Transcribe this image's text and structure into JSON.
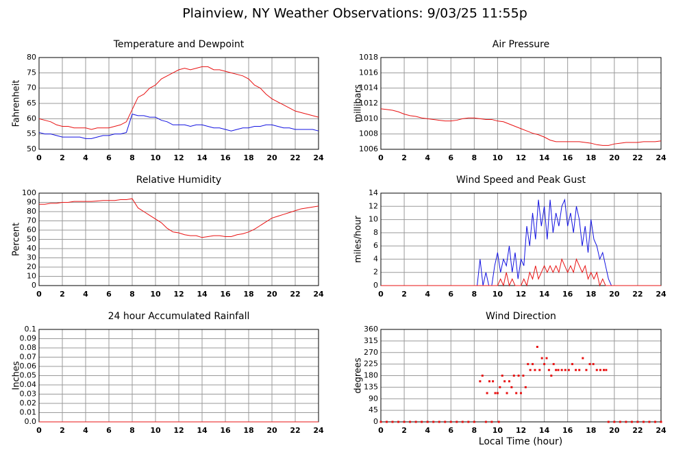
{
  "title": "Plainview, NY Weather Observations: 9/03/25 11:55p",
  "xlabel": "Local Time (hour)",
  "chart_data": [
    {
      "type": "line",
      "title": "Temperature and Dewpoint",
      "ylabel": "Fahrenheit",
      "x": [
        0,
        0.5,
        1,
        1.5,
        2,
        2.5,
        3,
        3.5,
        4,
        4.5,
        5,
        5.5,
        6,
        6.5,
        7,
        7.5,
        8,
        8.5,
        9,
        9.5,
        10,
        10.5,
        11,
        11.5,
        12,
        12.5,
        13,
        13.5,
        14,
        14.5,
        15,
        15.5,
        16,
        16.5,
        17,
        17.5,
        18,
        18.5,
        19,
        19.5,
        20,
        20.5,
        21,
        21.5,
        22,
        22.5,
        23,
        23.5,
        24
      ],
      "xlim": [
        0,
        24
      ],
      "xticks": [
        0,
        2,
        4,
        6,
        8,
        10,
        12,
        14,
        16,
        18,
        20,
        22,
        24
      ],
      "ylim": [
        50,
        80
      ],
      "yticks": [
        50,
        55,
        60,
        65,
        70,
        75,
        80
      ],
      "grid": true,
      "series": [
        {
          "color": "#e81010",
          "values": [
            60,
            59.5,
            59,
            58,
            57.5,
            57.5,
            57,
            57,
            57,
            56.5,
            57,
            57,
            57,
            57.5,
            58,
            59,
            63,
            67,
            68,
            70,
            71,
            73,
            74,
            75,
            76,
            76.5,
            76,
            76.5,
            77,
            77,
            76,
            76,
            75.5,
            75,
            74.5,
            74,
            73,
            71,
            70,
            68,
            66.5,
            65.5,
            64.5,
            63.5,
            62.5,
            62,
            61.5,
            61,
            60.5
          ]
        },
        {
          "color": "#1010e0",
          "values": [
            55.5,
            55,
            55,
            54.5,
            54,
            54,
            54,
            54,
            53.5,
            53.5,
            54,
            54.5,
            54.5,
            55,
            55,
            55.5,
            61.5,
            61,
            61,
            60.5,
            60.5,
            59.5,
            59,
            58,
            58,
            58,
            57.5,
            58,
            58,
            57.5,
            57,
            57,
            56.5,
            56,
            56.5,
            57,
            57,
            57.5,
            57.5,
            58,
            58,
            57.5,
            57,
            57,
            56.5,
            56.5,
            56.5,
            56.5,
            56
          ]
        }
      ]
    },
    {
      "type": "line",
      "title": "Air Pressure",
      "ylabel": "millibars",
      "x": [
        0,
        0.5,
        1,
        1.5,
        2,
        2.5,
        3,
        3.5,
        4,
        4.5,
        5,
        5.5,
        6,
        6.5,
        7,
        7.5,
        8,
        8.5,
        9,
        9.5,
        10,
        10.5,
        11,
        11.5,
        12,
        12.5,
        13,
        13.5,
        14,
        14.5,
        15,
        15.5,
        16,
        16.5,
        17,
        17.5,
        18,
        18.5,
        19,
        19.5,
        20,
        20.5,
        21,
        21.5,
        22,
        22.5,
        23,
        23.5,
        24
      ],
      "xlim": [
        0,
        24
      ],
      "xticks": [
        0,
        2,
        4,
        6,
        8,
        10,
        12,
        14,
        16,
        18,
        20,
        22,
        24
      ],
      "ylim": [
        1006,
        1018
      ],
      "yticks": [
        1006,
        1008,
        1010,
        1012,
        1014,
        1016,
        1018
      ],
      "grid": true,
      "series": [
        {
          "color": "#e81010",
          "values": [
            1011.3,
            1011.2,
            1011.1,
            1010.9,
            1010.6,
            1010.4,
            1010.3,
            1010.1,
            1010.0,
            1009.9,
            1009.8,
            1009.7,
            1009.7,
            1009.8,
            1010.0,
            1010.1,
            1010.1,
            1010.0,
            1009.9,
            1009.9,
            1009.7,
            1009.6,
            1009.3,
            1009.0,
            1008.7,
            1008.4,
            1008.1,
            1007.9,
            1007.6,
            1007.2,
            1007.0,
            1007.0,
            1007.0,
            1007.0,
            1007.0,
            1006.9,
            1006.8,
            1006.6,
            1006.5,
            1006.5,
            1006.7,
            1006.8,
            1006.9,
            1006.9,
            1006.9,
            1007.0,
            1007.0,
            1007.0,
            1007.1
          ]
        }
      ]
    },
    {
      "type": "line",
      "title": "Relative Humidity",
      "ylabel": "Percent",
      "x": [
        0,
        0.5,
        1,
        1.5,
        2,
        2.5,
        3,
        3.5,
        4,
        4.5,
        5,
        5.5,
        6,
        6.5,
        7,
        7.5,
        8,
        8.5,
        9,
        9.5,
        10,
        10.5,
        11,
        11.5,
        12,
        12.5,
        13,
        13.5,
        14,
        14.5,
        15,
        15.5,
        16,
        16.5,
        17,
        17.5,
        18,
        18.5,
        19,
        19.5,
        20,
        20.5,
        21,
        21.5,
        22,
        22.5,
        23,
        23.5,
        24
      ],
      "xlim": [
        0,
        24
      ],
      "xticks": [
        0,
        2,
        4,
        6,
        8,
        10,
        12,
        14,
        16,
        18,
        20,
        22,
        24
      ],
      "ylim": [
        0,
        100
      ],
      "yticks": [
        0,
        10,
        20,
        30,
        40,
        50,
        60,
        70,
        80,
        90,
        100
      ],
      "grid": true,
      "series": [
        {
          "color": "#e81010",
          "values": [
            88,
            88,
            89,
            89,
            90,
            90,
            91,
            91,
            91,
            91,
            91.5,
            92,
            92,
            92,
            93,
            93,
            94,
            84,
            80,
            76,
            72,
            68,
            62,
            58,
            57,
            55,
            54,
            54,
            52,
            53,
            54,
            54,
            53,
            53,
            55,
            56,
            58,
            61,
            65,
            69,
            73,
            75,
            77,
            79,
            81,
            83,
            84,
            85,
            86
          ]
        }
      ]
    },
    {
      "type": "line",
      "title": "Wind Speed and Peak Gust",
      "ylabel": "miles/hour",
      "x": [
        0,
        8,
        8.25,
        8.5,
        8.75,
        9,
        9.25,
        9.5,
        9.75,
        10,
        10.25,
        10.5,
        10.75,
        11,
        11.25,
        11.5,
        11.75,
        12,
        12.25,
        12.5,
        12.75,
        13,
        13.25,
        13.5,
        13.75,
        14,
        14.25,
        14.5,
        14.75,
        15,
        15.25,
        15.5,
        15.75,
        16,
        16.25,
        16.5,
        16.75,
        17,
        17.25,
        17.5,
        17.75,
        18,
        18.25,
        18.5,
        18.75,
        19,
        19.25,
        19.5,
        19.75,
        20,
        24
      ],
      "xlim": [
        0,
        24
      ],
      "xticks": [
        0,
        2,
        4,
        6,
        8,
        10,
        12,
        14,
        16,
        18,
        20,
        22,
        24
      ],
      "ylim": [
        0,
        14
      ],
      "yticks": [
        0,
        2,
        4,
        6,
        8,
        10,
        12,
        14
      ],
      "grid": true,
      "series": [
        {
          "color": "#1010e0",
          "values": [
            0,
            0,
            0,
            4,
            0,
            2,
            0,
            0,
            3,
            5,
            2,
            4,
            3,
            6,
            2,
            5,
            1,
            4,
            3,
            9,
            6,
            11,
            7,
            13,
            9,
            12,
            7,
            13,
            8,
            11,
            9,
            12,
            13,
            9,
            11,
            8,
            12,
            10,
            6,
            9,
            5,
            10,
            7,
            6,
            4,
            5,
            3,
            1,
            0,
            0,
            0
          ]
        },
        {
          "color": "#e81010",
          "values": [
            0,
            0,
            0,
            0,
            0,
            0,
            0,
            0,
            0,
            0,
            1,
            0,
            2,
            0,
            1,
            0,
            0,
            0,
            1,
            0,
            2,
            1,
            3,
            1,
            2,
            3,
            2,
            3,
            2,
            3,
            2,
            4,
            3,
            2,
            3,
            2,
            4,
            3,
            2,
            3,
            1,
            2,
            1,
            2,
            0,
            1,
            0,
            0,
            0,
            0,
            0
          ]
        }
      ]
    },
    {
      "type": "line",
      "title": "24 hour Accumulated Rainfall",
      "ylabel": "Inches",
      "x": [
        0,
        24
      ],
      "xlim": [
        0,
        24
      ],
      "xticks": [
        0,
        2,
        4,
        6,
        8,
        10,
        12,
        14,
        16,
        18,
        20,
        22,
        24
      ],
      "ylim": [
        0,
        0.1
      ],
      "yticks": [
        {
          "value": 0,
          "label": "0.0"
        },
        0.01,
        0.02,
        0.03,
        0.04,
        0.05,
        0.06,
        0.07,
        0.08,
        0.09,
        0.1
      ],
      "grid": true,
      "series": [
        {
          "color": "#e81010",
          "values": [
            0,
            0
          ]
        }
      ]
    },
    {
      "type": "scatter",
      "title": "Wind Direction",
      "ylabel": "degrees",
      "x": [
        0,
        0.5,
        1,
        1.5,
        2,
        2.5,
        3,
        3.5,
        4,
        4.5,
        5,
        5.5,
        6,
        6.5,
        7,
        7.5,
        8,
        8.5,
        8.7,
        9,
        9.1,
        9.3,
        9.6,
        9.8,
        10,
        10.2,
        10.4,
        10.6,
        10.8,
        11,
        11.2,
        11.4,
        11.6,
        11.8,
        12,
        12.2,
        12.4,
        12.6,
        12.8,
        13,
        13.2,
        13.4,
        13.6,
        13.8,
        14,
        14.2,
        14.4,
        14.6,
        14.8,
        15,
        15.2,
        15.5,
        15.8,
        16.1,
        16.4,
        16.7,
        17,
        17.3,
        17.6,
        17.9,
        18.2,
        18.5,
        18.8,
        19.1,
        19.3,
        9.5,
        10.1,
        19.5,
        20,
        20.5,
        21,
        21.5,
        22,
        22.5,
        23,
        23.5,
        24
      ],
      "values": [
        0,
        0,
        0,
        0,
        0,
        0,
        0,
        0,
        0,
        0,
        0,
        0,
        0,
        0,
        0,
        0,
        0,
        158,
        180,
        0,
        112,
        158,
        158,
        112,
        112,
        135,
        180,
        158,
        112,
        158,
        135,
        180,
        112,
        180,
        112,
        180,
        135,
        225,
        202,
        225,
        202,
        292,
        202,
        248,
        225,
        248,
        202,
        180,
        225,
        202,
        202,
        202,
        202,
        202,
        225,
        202,
        202,
        248,
        202,
        225,
        225,
        202,
        202,
        202,
        202,
        0,
        0,
        0,
        0,
        0,
        0,
        0,
        0,
        0,
        0,
        0,
        0
      ],
      "color": "#e81010",
      "xlim": [
        0,
        24
      ],
      "xticks": [
        0,
        2,
        4,
        6,
        8,
        10,
        12,
        14,
        16,
        18,
        20,
        22,
        24
      ],
      "ylim": [
        0,
        360
      ],
      "yticks": [
        0,
        45,
        90,
        135,
        180,
        225,
        270,
        315,
        360
      ],
      "grid": true
    }
  ]
}
